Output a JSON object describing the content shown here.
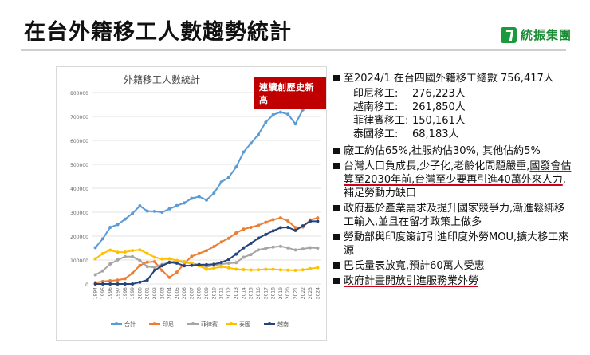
{
  "header": {
    "title": "在台外籍移工人數趨勢統計",
    "logo_text": "統振集團",
    "brand_color": "#1a9a3c"
  },
  "badge": {
    "text": "連續創歷史新高",
    "color": "#c00000"
  },
  "bullets": {
    "b1": "至2024/1 在台四國外籍移工總數 756,417人",
    "breakdown": [
      {
        "label": "印尼移工:",
        "value": "276,223人"
      },
      {
        "label": "越南移工:",
        "value": "261,850人"
      },
      {
        "label": "菲律賓移工:",
        "value": "150,161人"
      },
      {
        "label": "泰國移工:",
        "value": "68,183人"
      }
    ],
    "b2": "廠工約佔65%,社服約佔30%, 其他佔約5%",
    "b3a": "台灣人口負成長,少子化,老齡化問題嚴重,",
    "b3b": "國發會估算至2030年前,台灣至少要再引進40萬外來人力",
    "b3c": ",補足勞動力缺口",
    "b4": "政府基於產業需求及提升國家競爭力,漸進鬆綁移工輸入,並且在留才政策上做多",
    "b5": "勞動部與印度簽訂引進印度外勞MOU,擴大移工來源",
    "b6": "巴氏量表放寬,預計60萬人受惠",
    "b7": "政府計畫開放引進服務業外勞",
    "underline_color": "#d0021b"
  },
  "chart_data": {
    "type": "line",
    "title": "外籍移工人數統計",
    "ylim": [
      0,
      800000
    ],
    "yticks": [
      "0",
      "100000",
      "200000",
      "300000",
      "400000",
      "500000",
      "600000",
      "700000",
      "800000"
    ],
    "grid": true,
    "legend_position": "bottom",
    "categories": [
      "1994",
      "1995",
      "1996",
      "1997",
      "1998",
      "1999",
      "2000",
      "2001",
      "2002",
      "2003",
      "2004",
      "2005",
      "2006",
      "2007",
      "2008",
      "2009",
      "2010",
      "2011",
      "2012",
      "2013",
      "2014",
      "2015",
      "2016",
      "2017",
      "2018",
      "2019",
      "2020",
      "2021",
      "2022",
      "2023",
      "2024"
    ],
    "series": [
      {
        "name": "合計",
        "color": "#5b9bd5",
        "values": [
          151989,
          189051,
          236555,
          248396,
          270620,
          294967,
          326515,
          304605,
          303684,
          300150,
          314034,
          327396,
          338755,
          357937,
          365060,
          351016,
          379653,
          425660,
          445579,
          489134,
          551596,
          587940,
          624768,
          676142,
          706850,
          718058,
          709123,
          669033,
          728081,
          753430,
          756417
        ]
      },
      {
        "name": "印尼",
        "color": "#ed7d31",
        "values": [
          6020,
          10200,
          13400,
          15900,
          22000,
          45000,
          77830,
          91100,
          93212,
          56437,
          27281,
          49094,
          85223,
          115490,
          127450,
          139400,
          156332,
          175409,
          191127,
          213234,
          229491,
          236526,
          245180,
          258084,
          268576,
          276411,
          263358,
          235987,
          237885,
          267900,
          276223
        ]
      },
      {
        "name": "菲律賓",
        "color": "#a5a5a5",
        "values": [
          38473,
          54647,
          83630,
          100295,
          114255,
          113928,
          98161,
          72779,
          69426,
          81355,
          91150,
          95703,
          90054,
          86423,
          80636,
          72077,
          77538,
          82841,
          86786,
          89024,
          111533,
          123058,
          142655,
          148786,
          154209,
          157487,
          151044,
          141908,
          146431,
          151640,
          150161
        ]
      },
      {
        "name": "泰國",
        "color": "#ffc000",
        "values": [
          105152,
          126903,
          141230,
          132829,
          133367,
          139526,
          142665,
          127732,
          111538,
          104728,
          105281,
          98322,
          92894,
          86948,
          75584,
          61432,
          65742,
          71763,
          67611,
          61709,
          59933,
          58372,
          58869,
          61176,
          61207,
          59445,
          58135,
          56963,
          59005,
          64270,
          68183
        ]
      },
      {
        "name": "越南",
        "color": "#264478",
        "values": [
          0,
          0,
          0,
          0,
          0,
          0,
          7746,
          15981,
          56981,
          75873,
          89950,
          87020,
          75780,
          77211,
          81060,
          80167,
          82180,
          90108,
          102429,
          124685,
          151000,
          169981,
          191593,
          207045,
          221941,
          235230,
          236755,
          223543,
          242930,
          262100,
          261850
        ]
      }
    ]
  }
}
